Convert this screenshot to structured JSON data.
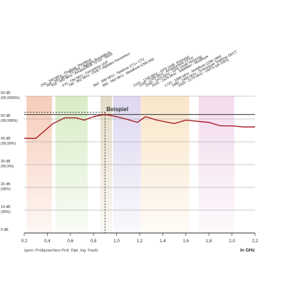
{
  "chart_data": {
    "type": "line",
    "xlabel": "in GHz",
    "source_note": "(gem. Prüfgutachten Prof. Dipl. Ing. Pauli)",
    "annotation": {
      "label": "Beispiel",
      "x": 0.9,
      "y": 52
    },
    "xlim": [
      0.2,
      2.2
    ],
    "ylim": [
      0,
      60
    ],
    "grid": true,
    "x_ticks": [
      "0,2",
      "0,4",
      "0,6",
      "0,8",
      "1,0",
      "1,2",
      "1,4",
      "1,6",
      "1,8",
      "2,0",
      "2,2"
    ],
    "x_tick_values": [
      0.2,
      0.4,
      0.6,
      0.8,
      1.0,
      1.2,
      1.4,
      1.6,
      1.8,
      2.0,
      2.2
    ],
    "y_ticks": [
      {
        "value": 60,
        "label": "60 dB",
        "sub": "(99,9999%)"
      },
      {
        "value": 50,
        "label": "50 dB",
        "sub": "(99,999%)"
      },
      {
        "value": 40,
        "label": "40 dB",
        "sub": "(99,99%)"
      },
      {
        "value": 30,
        "label": "30 dB",
        "sub": "(99,9%)"
      },
      {
        "value": 20,
        "label": "20 dB",
        "sub": "(99%)"
      },
      {
        "value": 10,
        "label": "10 dB",
        "sub": "(90%)"
      },
      {
        "value": 0,
        "label": "0 dB",
        "sub": ""
      }
    ],
    "highlight_lines": [
      52
    ],
    "bands": [
      {
        "from": 0.22,
        "to": 0.44,
        "color": "#f5c9b5"
      },
      {
        "from": 0.47,
        "to": 0.75,
        "color": "#d6ebc3"
      },
      {
        "from": 0.86,
        "to": 0.96,
        "color": "#e3d8c2"
      },
      {
        "from": 0.97,
        "to": 1.21,
        "color": "#dcd5ef"
      },
      {
        "from": 1.21,
        "to": 1.63,
        "color": "#f9e4c6"
      },
      {
        "from": 1.71,
        "to": 2.02,
        "color": "#f2d9ec"
      }
    ],
    "frequency_labels": [
      "230 - 300 MHz - Flugfunk, Richtfunk",
      "380 - 393 MHz - TETRA - digitaler Bündelfunk",
      "430 - 440 MHz - Amateurfunk 70 cm - Band",
      "470 - 790 MHz - Fernsehen UHF",
      "790 - 862 MHz - DVB-T digitales Fernsehen",
      "865 - 890 MHz - Telefone CT1+ CT2",
      "890 - 960 MHz - Mobilfunk GSM 900",
      "1215 - 1240 MHz - GPS (milit. Nutzung)",
      "1240 - 1300 MHz - Amateurfunk 23 cm",
      "1559 - 1610 MHz - GPS (zivile Nutzung)",
      "1616 - 1626 MHz - Satelliten - Mobilfunk",
      "1710 - 1880 MHz - Mobilfunk GSM 1800",
      "1880 - 1900 MHz - Schnurlose Telefone DECT",
      "1920 - 2170 MHz - UMTS (ab 2003)"
    ],
    "series": [
      {
        "color": "#a3151c",
        "x": [
          0.2,
          0.3,
          0.38,
          0.45,
          0.55,
          0.65,
          0.72,
          0.8,
          0.9,
          1.0,
          1.08,
          1.18,
          1.25,
          1.35,
          1.5,
          1.6,
          1.7,
          1.8,
          1.9,
          2.0,
          2.1,
          2.2
        ],
        "y": [
          41.5,
          41.5,
          45,
          48,
          50.5,
          50.5,
          49.5,
          51,
          52,
          51,
          50,
          48.5,
          51,
          49.5,
          48,
          49.5,
          49,
          48.5,
          47,
          47,
          46.5,
          46.5
        ]
      }
    ]
  }
}
